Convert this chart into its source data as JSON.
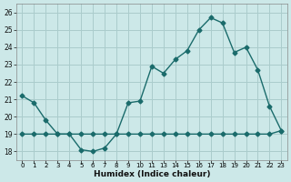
{
  "xlabel": "Humidex (Indice chaleur)",
  "background_color": "#cce8e8",
  "grid_color": "#aacccc",
  "line_color": "#1a6b6b",
  "xlim": [
    -0.5,
    22.5
  ],
  "ylim": [
    17.5,
    26.5
  ],
  "yticks": [
    18,
    19,
    20,
    21,
    22,
    23,
    24,
    25,
    26
  ],
  "xtick_labels": [
    "0",
    "1",
    "2",
    "3",
    "4",
    "5",
    "6",
    "7",
    "8",
    "9",
    "10",
    "11",
    "13",
    "14",
    "15",
    "16",
    "17",
    "18",
    "19",
    "20",
    "21",
    "22",
    "23"
  ],
  "series1_y": [
    21.2,
    20.8,
    19.8,
    19.0,
    19.0,
    18.1,
    18.0,
    18.2,
    19.0,
    20.8,
    20.9,
    22.9,
    22.5,
    23.3,
    23.8,
    25.0,
    25.7,
    25.4,
    23.7,
    24.0,
    22.7,
    20.6,
    19.2
  ],
  "series2_y": [
    19.0,
    19.0,
    19.0,
    19.0,
    19.0,
    19.0,
    19.0,
    19.0,
    19.0,
    19.0,
    19.0,
    19.0,
    19.0,
    19.0,
    19.0,
    19.0,
    19.0,
    19.0,
    19.0,
    19.0,
    19.0,
    19.0,
    19.2
  ]
}
